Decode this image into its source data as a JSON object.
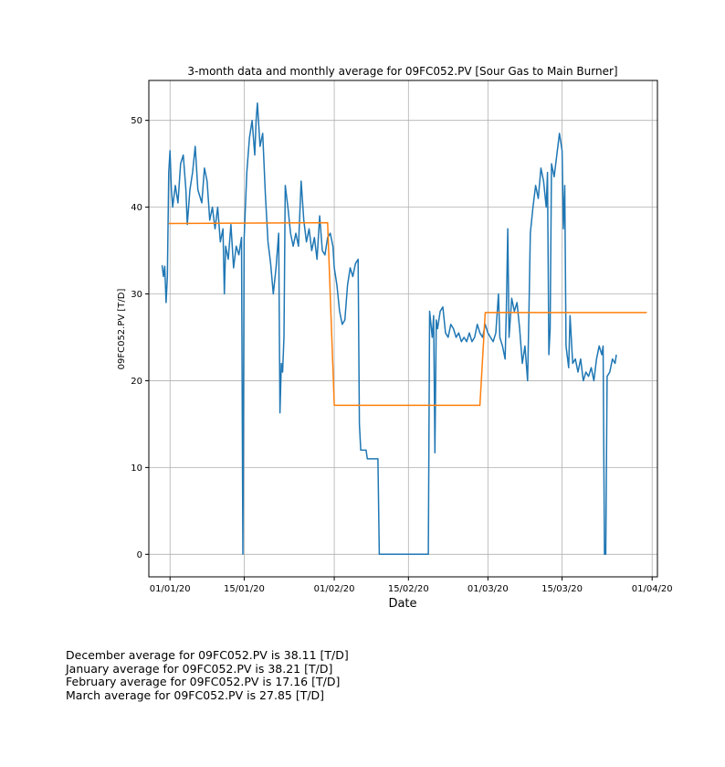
{
  "chart_data": {
    "type": "line",
    "title": "3-month data and monthly average for 09FC052.PV [Sour Gas to Main Burner]",
    "xlabel": "Date",
    "ylabel": "09FC052.PV [T/D]",
    "xlim": [
      "2019-12-28",
      "2020-04-02"
    ],
    "ylim": [
      -2.6,
      54.6
    ],
    "grid": true,
    "x_ticks": [
      {
        "date": "2020-01-01",
        "label": "01/01/20"
      },
      {
        "date": "2020-01-15",
        "label": "15/01/20"
      },
      {
        "date": "2020-02-01",
        "label": "01/02/20"
      },
      {
        "date": "2020-02-15",
        "label": "15/02/20"
      },
      {
        "date": "2020-03-01",
        "label": "01/03/20"
      },
      {
        "date": "2020-03-15",
        "label": "15/03/20"
      },
      {
        "date": "2020-04-01",
        "label": "01/04/20"
      }
    ],
    "y_ticks": [
      0,
      10,
      20,
      30,
      40,
      50
    ],
    "series": [
      {
        "color": "#1f77b4",
        "points": [
          [
            "2019-12-30 12:00",
            33.3
          ],
          [
            "2019-12-30 18:00",
            32.0
          ],
          [
            "2019-12-31 00:00",
            33.2
          ],
          [
            "2019-12-31 06:00",
            29.0
          ],
          [
            "2019-12-31 12:00",
            32.0
          ],
          [
            "2019-12-31 18:00",
            44.0
          ],
          [
            "2020-01-01 00:00",
            46.5
          ],
          [
            "2020-01-01 06:00",
            42.0
          ],
          [
            "2020-01-01 12:00",
            40.0
          ],
          [
            "2020-01-02 00:00",
            42.5
          ],
          [
            "2020-01-02 12:00",
            40.5
          ],
          [
            "2020-01-03 00:00",
            45.0
          ],
          [
            "2020-01-03 12:00",
            46.0
          ],
          [
            "2020-01-04 00:00",
            42.0
          ],
          [
            "2020-01-04 06:00",
            38.0
          ],
          [
            "2020-01-04 18:00",
            42.0
          ],
          [
            "2020-01-05 06:00",
            44.0
          ],
          [
            "2020-01-05 18:00",
            47.0
          ],
          [
            "2020-01-06 06:00",
            42.0
          ],
          [
            "2020-01-07 00:00",
            40.5
          ],
          [
            "2020-01-07 12:00",
            44.5
          ],
          [
            "2020-01-08 00:00",
            43.0
          ],
          [
            "2020-01-08 12:00",
            38.5
          ],
          [
            "2020-01-09 00:00",
            40.0
          ],
          [
            "2020-01-09 12:00",
            37.5
          ],
          [
            "2020-01-10 00:00",
            40.0
          ],
          [
            "2020-01-10 12:00",
            36.0
          ],
          [
            "2020-01-11 00:00",
            37.5
          ],
          [
            "2020-01-11 06:00",
            30.0
          ],
          [
            "2020-01-11 12:00",
            35.5
          ],
          [
            "2020-01-12 00:00",
            34.0
          ],
          [
            "2020-01-12 12:00",
            38.0
          ],
          [
            "2020-01-13 00:00",
            33.0
          ],
          [
            "2020-01-13 12:00",
            35.5
          ],
          [
            "2020-01-14 00:00",
            34.5
          ],
          [
            "2020-01-14 12:00",
            36.5
          ],
          [
            "2020-01-14 18:00",
            0.0
          ],
          [
            "2020-01-15 00:00",
            36.5
          ],
          [
            "2020-01-15 12:00",
            44.0
          ],
          [
            "2020-01-16 00:00",
            48.0
          ],
          [
            "2020-01-16 12:00",
            50.0
          ],
          [
            "2020-01-17 00:00",
            46.0
          ],
          [
            "2020-01-17 06:00",
            50.0
          ],
          [
            "2020-01-17 12:00",
            52.0
          ],
          [
            "2020-01-18 00:00",
            47.0
          ],
          [
            "2020-01-18 12:00",
            48.5
          ],
          [
            "2020-01-19 00:00",
            41.5
          ],
          [
            "2020-01-19 12:00",
            36.0
          ],
          [
            "2020-01-20 00:00",
            33.5
          ],
          [
            "2020-01-20 12:00",
            30.0
          ],
          [
            "2020-01-21 00:00",
            33.0
          ],
          [
            "2020-01-21 12:00",
            37.0
          ],
          [
            "2020-01-21 18:00",
            16.3
          ],
          [
            "2020-01-22 00:00",
            22.0
          ],
          [
            "2020-01-22 06:00",
            21.0
          ],
          [
            "2020-01-22 12:00",
            25.0
          ],
          [
            "2020-01-22 18:00",
            42.5
          ],
          [
            "2020-01-23 06:00",
            40.0
          ],
          [
            "2020-01-23 18:00",
            37.0
          ],
          [
            "2020-01-24 06:00",
            35.5
          ],
          [
            "2020-01-24 18:00",
            37.0
          ],
          [
            "2020-01-25 06:00",
            35.5
          ],
          [
            "2020-01-25 18:00",
            43.0
          ],
          [
            "2020-01-26 06:00",
            38.5
          ],
          [
            "2020-01-26 18:00",
            36.0
          ],
          [
            "2020-01-27 06:00",
            37.5
          ],
          [
            "2020-01-27 18:00",
            35.0
          ],
          [
            "2020-01-28 06:00",
            36.5
          ],
          [
            "2020-01-28 18:00",
            34.0
          ],
          [
            "2020-01-29 06:00",
            39.0
          ],
          [
            "2020-01-29 18:00",
            35.0
          ],
          [
            "2020-01-30 06:00",
            34.5
          ],
          [
            "2020-01-30 18:00",
            36.5
          ],
          [
            "2020-01-31 06:00",
            37.0
          ],
          [
            "2020-01-31 18:00",
            35.5
          ],
          [
            "2020-02-01 00:00",
            33.0
          ],
          [
            "2020-02-01 12:00",
            31.0
          ],
          [
            "2020-02-02 00:00",
            28.0
          ],
          [
            "2020-02-02 12:00",
            26.5
          ],
          [
            "2020-02-03 00:00",
            27.0
          ],
          [
            "2020-02-03 12:00",
            31.0
          ],
          [
            "2020-02-04 00:00",
            33.0
          ],
          [
            "2020-02-04 12:00",
            32.0
          ],
          [
            "2020-02-05 00:00",
            33.5
          ],
          [
            "2020-02-05 12:00",
            34.0
          ],
          [
            "2020-02-05 18:00",
            15.0
          ],
          [
            "2020-02-06 00:00",
            12.0
          ],
          [
            "2020-02-07 00:00",
            12.0
          ],
          [
            "2020-02-07 06:00",
            11.0
          ],
          [
            "2020-02-09 06:00",
            11.0
          ],
          [
            "2020-02-09 12:00",
            0.0
          ],
          [
            "2020-02-18 18:00",
            0.0
          ],
          [
            "2020-02-19 00:00",
            28.0
          ],
          [
            "2020-02-19 12:00",
            25.0
          ],
          [
            "2020-02-19 18:00",
            27.5
          ],
          [
            "2020-02-20 00:00",
            11.7
          ],
          [
            "2020-02-20 06:00",
            27.0
          ],
          [
            "2020-02-20 12:00",
            26.0
          ],
          [
            "2020-02-21 00:00",
            28.0
          ],
          [
            "2020-02-21 12:00",
            28.5
          ],
          [
            "2020-02-22 00:00",
            25.5
          ],
          [
            "2020-02-22 12:00",
            25.0
          ],
          [
            "2020-02-23 00:00",
            26.5
          ],
          [
            "2020-02-23 12:00",
            26.0
          ],
          [
            "2020-02-24 00:00",
            25.0
          ],
          [
            "2020-02-24 12:00",
            25.5
          ],
          [
            "2020-02-25 00:00",
            24.5
          ],
          [
            "2020-02-25 12:00",
            25.0
          ],
          [
            "2020-02-26 00:00",
            24.5
          ],
          [
            "2020-02-26 12:00",
            25.5
          ],
          [
            "2020-02-27 00:00",
            24.5
          ],
          [
            "2020-02-27 12:00",
            25.0
          ],
          [
            "2020-02-28 00:00",
            26.5
          ],
          [
            "2020-02-28 12:00",
            25.5
          ],
          [
            "2020-02-29 00:00",
            25.0
          ],
          [
            "2020-02-29 12:00",
            26.5
          ],
          [
            "2020-03-01 00:00",
            25.5
          ],
          [
            "2020-03-01 12:00",
            25.0
          ],
          [
            "2020-03-02 00:00",
            24.5
          ],
          [
            "2020-03-02 12:00",
            25.5
          ],
          [
            "2020-03-03 00:00",
            30.0
          ],
          [
            "2020-03-03 06:00",
            25.0
          ],
          [
            "2020-03-03 18:00",
            24.0
          ],
          [
            "2020-03-04 06:00",
            22.5
          ],
          [
            "2020-03-04 12:00",
            28.5
          ],
          [
            "2020-03-04 18:00",
            37.5
          ],
          [
            "2020-03-05 00:00",
            25.0
          ],
          [
            "2020-03-05 12:00",
            29.5
          ],
          [
            "2020-03-06 00:00",
            28.0
          ],
          [
            "2020-03-06 12:00",
            29.0
          ],
          [
            "2020-03-07 00:00",
            26.0
          ],
          [
            "2020-03-07 12:00",
            22.0
          ],
          [
            "2020-03-08 00:00",
            24.0
          ],
          [
            "2020-03-08 12:00",
            20.0
          ],
          [
            "2020-03-08 18:00",
            28.0
          ],
          [
            "2020-03-09 00:00",
            37.0
          ],
          [
            "2020-03-09 12:00",
            40.0
          ],
          [
            "2020-03-10 00:00",
            42.5
          ],
          [
            "2020-03-10 12:00",
            41.0
          ],
          [
            "2020-03-11 00:00",
            44.5
          ],
          [
            "2020-03-11 12:00",
            43.0
          ],
          [
            "2020-03-12 00:00",
            40.0
          ],
          [
            "2020-03-12 06:00",
            44.0
          ],
          [
            "2020-03-12 12:00",
            23.0
          ],
          [
            "2020-03-12 18:00",
            26.0
          ],
          [
            "2020-03-13 00:00",
            45.0
          ],
          [
            "2020-03-13 12:00",
            43.5
          ],
          [
            "2020-03-14 00:00",
            46.0
          ],
          [
            "2020-03-14 12:00",
            48.5
          ],
          [
            "2020-03-15 00:00",
            46.5
          ],
          [
            "2020-03-15 06:00",
            37.5
          ],
          [
            "2020-03-15 12:00",
            42.5
          ],
          [
            "2020-03-15 18:00",
            24.0
          ],
          [
            "2020-03-16 06:00",
            21.5
          ],
          [
            "2020-03-16 12:00",
            27.5
          ],
          [
            "2020-03-17 00:00",
            22.0
          ],
          [
            "2020-03-17 12:00",
            22.5
          ],
          [
            "2020-03-18 00:00",
            21.0
          ],
          [
            "2020-03-18 12:00",
            22.5
          ],
          [
            "2020-03-19 00:00",
            20.0
          ],
          [
            "2020-03-19 12:00",
            21.0
          ],
          [
            "2020-03-20 00:00",
            20.5
          ],
          [
            "2020-03-20 12:00",
            21.5
          ],
          [
            "2020-03-21 00:00",
            20.0
          ],
          [
            "2020-03-21 12:00",
            22.5
          ],
          [
            "2020-03-22 00:00",
            24.0
          ],
          [
            "2020-03-22 12:00",
            23.0
          ],
          [
            "2020-03-22 18:00",
            24.0
          ],
          [
            "2020-03-23 00:00",
            0.0
          ],
          [
            "2020-03-23 06:00",
            0.0
          ],
          [
            "2020-03-23 12:00",
            20.5
          ],
          [
            "2020-03-24 00:00",
            21.0
          ],
          [
            "2020-03-24 12:00",
            22.5
          ],
          [
            "2020-03-25 00:00",
            22.0
          ],
          [
            "2020-03-25 06:00",
            23.0
          ]
        ]
      },
      {
        "color": "#ff7f0e",
        "points": [
          [
            "2019-12-31 18:00",
            38.11
          ],
          [
            "2020-01-30 18:00",
            38.21
          ],
          [
            "2020-02-01 00:00",
            17.16
          ],
          [
            "2020-02-28 12:00",
            17.16
          ],
          [
            "2020-02-29 12:00",
            27.85
          ],
          [
            "2020-03-31 00:00",
            27.85
          ]
        ]
      }
    ]
  },
  "summary_lines": [
    "December average for 09FC052.PV is 38.11 [T/D]",
    "January average for 09FC052.PV is 38.21 [T/D]",
    "February average for 09FC052.PV is 17.16 [T/D]",
    "March average for 09FC052.PV is 27.85 [T/D]"
  ]
}
